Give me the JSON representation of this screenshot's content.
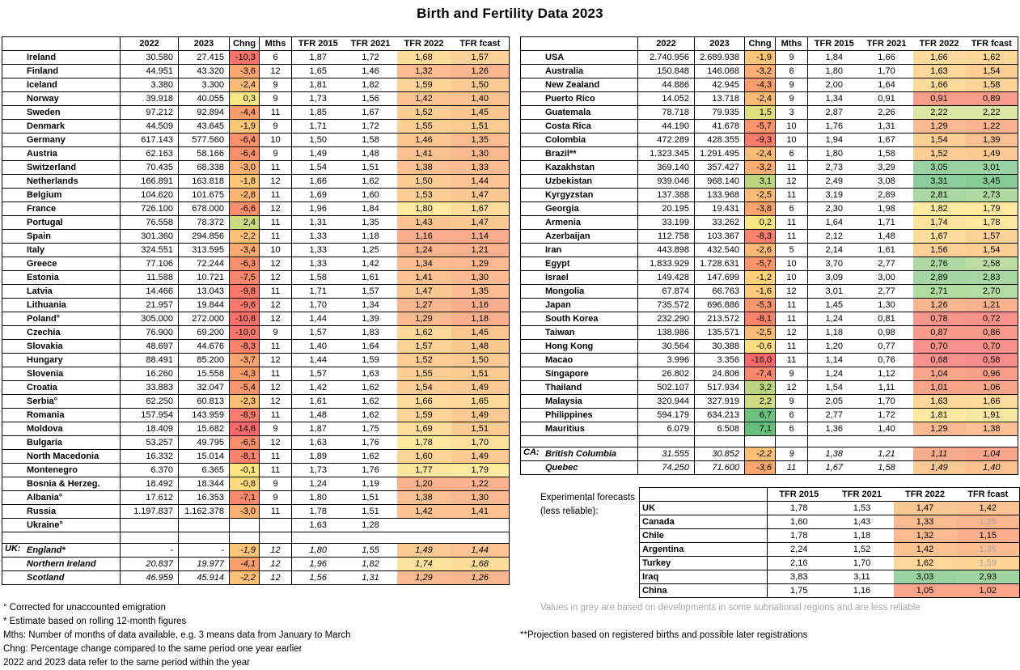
{
  "title": "Birth and Fertility Data 2023",
  "table_headers": [
    "2022",
    "2023",
    "Chng",
    "Mths",
    "TFR 2015",
    "TFR 2021",
    "TFR 2022",
    "TFR fcast"
  ],
  "europe_table": {
    "rows": [
      [
        "Ireland",
        "30.580",
        "27.415",
        "-10,3",
        "6",
        "1,87",
        "1,72",
        "1,68",
        "1,57"
      ],
      [
        "Finland",
        "44.951",
        "43.320",
        "-3,6",
        "12",
        "1,65",
        "1,46",
        "1,32",
        "1,26"
      ],
      [
        "Iceland",
        "3.380",
        "3.300",
        "-2,4",
        "9",
        "1,81",
        "1,82",
        "1,59",
        "1,50"
      ],
      [
        "Norway",
        "39.918",
        "40.055",
        "0,3",
        "9",
        "1,73",
        "1,56",
        "1,42",
        "1,40"
      ],
      [
        "Sweden",
        "97.212",
        "92.894",
        "-4,4",
        "11",
        "1,85",
        "1,67",
        "1,52",
        "1,45"
      ],
      [
        "Denmark",
        "44.509",
        "43.645",
        "-1,9",
        "9",
        "1,71",
        "1,72",
        "1,55",
        "1,51"
      ],
      [
        "Germany",
        "617.143",
        "577.560",
        "-6,4",
        "10",
        "1,50",
        "1,58",
        "1,46",
        "1,35"
      ],
      [
        "Austria",
        "62.163",
        "58.166",
        "-6,4",
        "9",
        "1,49",
        "1,48",
        "1,41",
        "1,30"
      ],
      [
        "Switzerland",
        "70.435",
        "68.338",
        "-3,0",
        "11",
        "1,54",
        "1,51",
        "1,38",
        "1,33"
      ],
      [
        "Netherlands",
        "166.891",
        "163.818",
        "-1,8",
        "12",
        "1,66",
        "1,62",
        "1,50",
        "1,44"
      ],
      [
        "Belgium",
        "104.620",
        "101.675",
        "-2,8",
        "11",
        "1,69",
        "1,60",
        "1,53",
        "1,47"
      ],
      [
        "France",
        "726.100",
        "678.000",
        "-6,6",
        "12",
        "1,96",
        "1,84",
        "1,80",
        "1,67"
      ],
      [
        "Portugal",
        "76.558",
        "78.372",
        "2,4",
        "11",
        "1,31",
        "1,35",
        "1,43",
        "1,47"
      ],
      [
        "Spain",
        "301.360",
        "294.856",
        "-2,2",
        "11",
        "1,33",
        "1,18",
        "1,16",
        "1,14"
      ],
      [
        "Italy",
        "324.551",
        "313.595",
        "-3,4",
        "10",
        "1,33",
        "1,25",
        "1,24",
        "1,21"
      ],
      [
        "Greece",
        "77.106",
        "72.244",
        "-6,3",
        "12",
        "1,33",
        "1,42",
        "1,34",
        "1,29"
      ],
      [
        "Estonia",
        "11.588",
        "10.721",
        "-7,5",
        "12",
        "1,58",
        "1,61",
        "1,41",
        "1,30"
      ],
      [
        "Latvia",
        "14.466",
        "13.043",
        "-9,8",
        "11",
        "1,71",
        "1,57",
        "1,47",
        "1,35"
      ],
      [
        "Lithuania",
        "21.957",
        "19.844",
        "-9,6",
        "12",
        "1,70",
        "1,34",
        "1,27",
        "1,16"
      ],
      [
        "Poland°",
        "305.000",
        "272.000",
        "-10,8",
        "12",
        "1,44",
        "1,39",
        "1,29",
        "1,18"
      ],
      [
        "Czechia",
        "76.900",
        "69.200",
        "-10,0",
        "9",
        "1,57",
        "1,83",
        "1,62",
        "1,45"
      ],
      [
        "Slovakia",
        "48.697",
        "44.676",
        "-8,3",
        "11",
        "1,40",
        "1,64",
        "1,57",
        "1,48"
      ],
      [
        "Hungary",
        "88.491",
        "85.200",
        "-3,7",
        "12",
        "1,44",
        "1,59",
        "1,52",
        "1,50"
      ],
      [
        "Slovenia",
        "16.260",
        "15.558",
        "-4,3",
        "11",
        "1,57",
        "1,63",
        "1,55",
        "1,51"
      ],
      [
        "Croatia",
        "33.883",
        "32.047",
        "-5,4",
        "12",
        "1,42",
        "1,62",
        "1,54",
        "1,49"
      ],
      [
        "Serbia°",
        "62.250",
        "60.813",
        "-2,3",
        "12",
        "1,61",
        "1,62",
        "1,66",
        "1,65"
      ],
      [
        "Romania",
        "157.954",
        "143.959",
        "-8,9",
        "11",
        "1,48",
        "1,62",
        "1,59",
        "1,49"
      ],
      [
        "Moldova",
        "18.409",
        "15.682",
        "-14,8",
        "9",
        "1,87",
        "1,75",
        "1,69",
        "1,51"
      ],
      [
        "Bulgaria",
        "53.257",
        "49.795",
        "-6,5",
        "12",
        "1,63",
        "1,76",
        "1,78",
        "1,70"
      ],
      [
        "North Macedonia",
        "16.332",
        "15.014",
        "-8,1",
        "11",
        "1,89",
        "1,62",
        "1,60",
        "1,49"
      ],
      [
        "Montenegro",
        "6.370",
        "6.365",
        "-0,1",
        "11",
        "1,73",
        "1,76",
        "1,77",
        "1,79"
      ],
      [
        "Bosnia & Herzeg.",
        "18.492",
        "18.344",
        "-0,8",
        "9",
        "1,24",
        "1,19",
        "1,20",
        "1,22"
      ],
      [
        "Albania°",
        "17.612",
        "16.353",
        "-7,1",
        "9",
        "1,80",
        "1,51",
        "1,38",
        "1,30"
      ],
      [
        "Russia",
        "1.197.837",
        "1.162.378",
        "-3,0",
        "11",
        "1,78",
        "1,51",
        "1,42",
        "1,41"
      ],
      [
        "Ukraine°",
        "",
        "",
        "",
        "",
        "1,63",
        "1,28",
        "",
        ""
      ]
    ],
    "footer_prefix": "UK:",
    "footer_rows": [
      [
        "England*",
        "-",
        "-",
        "-1,9",
        "12",
        "1,80",
        "1,55",
        "1,49",
        "1,44"
      ],
      [
        "Northern Ireland",
        "20.837",
        "19.977",
        "-4,1",
        "12",
        "1,96",
        "1,82",
        "1,74",
        "1,68"
      ],
      [
        "Scotland",
        "46.959",
        "45.914",
        "-2,2",
        "12",
        "1,56",
        "1,31",
        "1,29",
        "1,26"
      ]
    ]
  },
  "world_table": {
    "rows": [
      [
        "USA",
        "2.740.956",
        "2.689.938",
        "-1,9",
        "9",
        "1,84",
        "1,66",
        "1,66",
        "1,62"
      ],
      [
        "Australia",
        "150.848",
        "146.068",
        "-3,2",
        "6",
        "1,80",
        "1,70",
        "1,63",
        "1,54"
      ],
      [
        "New Zealand",
        "44.886",
        "42.945",
        "-4,3",
        "9",
        "2,00",
        "1,64",
        "1,66",
        "1,58"
      ],
      [
        "Puerto Rico",
        "14.052",
        "13.718",
        "-2,4",
        "9",
        "1,34",
        "0,91",
        "0,91",
        "0,89"
      ],
      [
        "Guatemala",
        "78.718",
        "79.935",
        "1,5",
        "3",
        "2,87",
        "2,26",
        "2,22",
        "2,22"
      ],
      [
        "Costa Rica",
        "44.190",
        "41.678",
        "-5,7",
        "10",
        "1,76",
        "1,31",
        "1,29",
        "1,22"
      ],
      [
        "Colombia",
        "472.289",
        "428.355",
        "-9,3",
        "10",
        "1,94",
        "1,67",
        "1,54",
        "1,39"
      ],
      [
        "Brazil**",
        "1.323.345",
        "1.291.495",
        "-2,4",
        "6",
        "1,80",
        "1,58",
        "1,52",
        "1,49"
      ],
      [
        "Kazakhstan",
        "369.140",
        "357.427",
        "-3,2",
        "11",
        "2,73",
        "3,29",
        "3,05",
        "3,01"
      ],
      [
        "Uzbekistan",
        "939.046",
        "968.140",
        "3,1",
        "12",
        "2,49",
        "3,08",
        "3,31",
        "3,45"
      ],
      [
        "Kyrgyzstan",
        "137.388",
        "133.968",
        "-2,5",
        "11",
        "3,19",
        "2,89",
        "2,81",
        "2,73"
      ],
      [
        "Georgia",
        "20.195",
        "19.431",
        "-3,8",
        "6",
        "2,30",
        "1,98",
        "1,82",
        "1,79"
      ],
      [
        "Armenia",
        "33.199",
        "33.262",
        "0,2",
        "11",
        "1,64",
        "1,71",
        "1,74",
        "1,78"
      ],
      [
        "Azerbaijan",
        "112.758",
        "103.367",
        "-8,3",
        "11",
        "2,12",
        "1,48",
        "1,67",
        "1,57"
      ],
      [
        "Iran",
        "443.898",
        "432.540",
        "-2,6",
        "5",
        "2,14",
        "1,61",
        "1,56",
        "1,54"
      ],
      [
        "Egypt",
        "1.833.929",
        "1.728.631",
        "-5,7",
        "10",
        "3,70",
        "2,77",
        "2,76",
        "2,58"
      ],
      [
        "Israel",
        "149.428",
        "147.699",
        "-1,2",
        "10",
        "3,09",
        "3,00",
        "2,89",
        "2,83"
      ],
      [
        "Mongolia",
        "67.874",
        "66.763",
        "-1,6",
        "12",
        "3,01",
        "2,77",
        "2,71",
        "2,70"
      ],
      [
        "Japan",
        "735.572",
        "696.886",
        "-5,3",
        "11",
        "1,45",
        "1,30",
        "1,26",
        "1,21"
      ],
      [
        "South Korea",
        "232.290",
        "213.572",
        "-8,1",
        "11",
        "1,24",
        "0,81",
        "0,78",
        "0,72"
      ],
      [
        "Taiwan",
        "138.986",
        "135.571",
        "-2,5",
        "12",
        "1,18",
        "0,98",
        "0,87",
        "0,86"
      ],
      [
        "Hong Kong",
        "30.564",
        "30.388",
        "-0,6",
        "11",
        "1,20",
        "0,77",
        "0,70",
        "0,70"
      ],
      [
        "Macao",
        "3.996",
        "3.356",
        "-16,0",
        "11",
        "1,14",
        "0,76",
        "0,68",
        "0,58"
      ],
      [
        "Singapore",
        "26.802",
        "24.806",
        "-7,4",
        "9",
        "1,24",
        "1,12",
        "1,04",
        "0,96"
      ],
      [
        "Thailand",
        "502.107",
        "517.934",
        "3,2",
        "12",
        "1,54",
        "1,11",
        "1,01",
        "1,06"
      ],
      [
        "Malaysia",
        "320.944",
        "327.919",
        "2,2",
        "9",
        "2,05",
        "1,70",
        "1,63",
        "1,66"
      ],
      [
        "Philippines",
        "594.179",
        "634.213",
        "6,7",
        "6",
        "2,77",
        "1,72",
        "1,81",
        "1,91"
      ],
      [
        "Mauritius",
        "6.079",
        "6.508",
        "7,1",
        "6",
        "1,36",
        "1,40",
        "1,29",
        "1,38"
      ]
    ],
    "footer_prefix": "CA:",
    "footer_rows": [
      [
        "British Columbia",
        "31.555",
        "30.852",
        "-2,2",
        "9",
        "1,38",
        "1,21",
        "1,11",
        "1,04"
      ],
      [
        "Quebec",
        "74.250",
        "71.600",
        "-3,6",
        "11",
        "1,67",
        "1,58",
        "1,49",
        "1,40"
      ]
    ]
  },
  "experimental_table": {
    "label": "Experimental forecasts (less reliable):",
    "headers": [
      "TFR 2015",
      "TFR 2021",
      "TFR 2022",
      "TFR fcast"
    ],
    "rows": [
      {
        "name": "UK",
        "values": [
          "1,78",
          "1,53",
          "1,47",
          "1,42"
        ],
        "grey_fcast": false
      },
      {
        "name": "Canada",
        "values": [
          "1,60",
          "1,43",
          "1,33",
          "1,25"
        ],
        "grey_fcast": true
      },
      {
        "name": "Chile",
        "values": [
          "1,78",
          "1,18",
          "1,32",
          "1,15"
        ],
        "grey_fcast": false
      },
      {
        "name": "Argentina",
        "values": [
          "2,24",
          "1,52",
          "1,42",
          "1,35"
        ],
        "grey_fcast": true
      },
      {
        "name": "Turkey",
        "values": [
          "2,16",
          "1,70",
          "1,62",
          "1,59"
        ],
        "grey_fcast": true
      },
      {
        "name": "Iraq",
        "values": [
          "3,83",
          "3,11",
          "3,03",
          "2,93"
        ],
        "grey_fcast": false
      },
      {
        "name": "China",
        "values": [
          "1,75",
          "1,16",
          "1,05",
          "1,02"
        ],
        "grey_fcast": false
      }
    ]
  },
  "footnotes_left": [
    "° Corrected for unaccounted emigration",
    "* Estimate based on rolling 12-month figures",
    "Mths: Number of months of data available, e.g. 3 means data from January to March",
    "Chng: Percentage change compared to the same period one year earlier",
    "2022 and 2023 data refer to the same period within the year"
  ],
  "footnotes_right": {
    "grey_note": "Values in grey are based on developments in some subnational regions and are less reliable",
    "projection_note": "**Projection based on registered births and possible later registrations"
  },
  "colors": {
    "border": "#000000",
    "grey_text": "#A6A6A6",
    "heatmap_chng_stops": [
      [
        -12,
        "#F8696B"
      ],
      [
        -4,
        "#FA9F6E"
      ],
      [
        0,
        "#FFE884"
      ],
      [
        7.2,
        "#63BE7B"
      ]
    ],
    "heatmap_tfr_stops": [
      [
        0.55,
        "#F8898B"
      ],
      [
        1.0,
        "#F9A28B"
      ],
      [
        1.45,
        "#FBC592"
      ],
      [
        1.8,
        "#FFE9A0"
      ],
      [
        2.25,
        "#D8E7A3"
      ],
      [
        3.0,
        "#9AD3A2"
      ],
      [
        3.5,
        "#84CB96"
      ]
    ]
  }
}
